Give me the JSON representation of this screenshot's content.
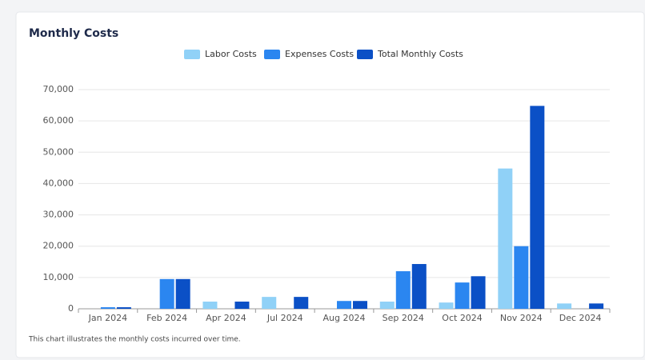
{
  "chart_data": {
    "type": "bar",
    "title": "Monthly Costs",
    "caption": "This chart illustrates the monthly costs incurred over time.",
    "categories": [
      "Jan 2024",
      "Feb 2024",
      "Apr 2024",
      "Jul 2024",
      "Aug 2024",
      "Sep 2024",
      "Oct 2024",
      "Nov 2024",
      "Dec 2024"
    ],
    "series": [
      {
        "name": "Labor Costs",
        "color": "#90d1f7",
        "values": [
          0,
          0,
          2300,
          3800,
          0,
          2300,
          2000,
          44800,
          1700
        ]
      },
      {
        "name": "Expenses Costs",
        "color": "#2b86f0",
        "values": [
          500,
          9500,
          0,
          0,
          2500,
          12000,
          8400,
          20000,
          0
        ]
      },
      {
        "name": "Total Monthly Costs",
        "color": "#0b50c6",
        "values": [
          500,
          9500,
          2300,
          3800,
          2500,
          14300,
          10400,
          64800,
          1700
        ]
      }
    ],
    "ylim": [
      0,
      70000
    ],
    "yticks": [
      0,
      {
        "value": 10000,
        "label": "10,000"
      },
      {
        "value": 20000,
        "label": "20,000"
      },
      {
        "value": 30000,
        "label": "30,000"
      },
      {
        "value": 40000,
        "label": "40,000"
      },
      {
        "value": 50000,
        "label": "50,000"
      },
      {
        "value": 60000,
        "label": "60,000"
      },
      {
        "value": 70000,
        "label": "70,000"
      }
    ],
    "grid": true
  }
}
